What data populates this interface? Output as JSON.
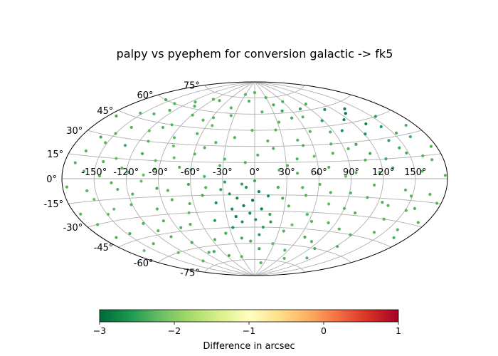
{
  "chart_data": {
    "type": "scatter",
    "projection": "aitoff",
    "title": "palpy vs pyephem for conversion galactic -> fk5",
    "grid": true,
    "x_ticks": [
      -150,
      -120,
      -90,
      -60,
      -30,
      0,
      30,
      60,
      90,
      120,
      150
    ],
    "x_tick_labels": [
      "-150°",
      "-120°",
      "-90°",
      "-60°",
      "-30°",
      "0°",
      "30°",
      "60°",
      "90°",
      "120°",
      "150°"
    ],
    "y_ticks": [
      -75,
      -60,
      -45,
      -30,
      -15,
      0,
      15,
      30,
      45,
      60,
      75
    ],
    "y_tick_labels": [
      "-75°",
      "-60°",
      "-45°",
      "-30°",
      "-15°",
      "0°",
      "15°",
      "30°",
      "45°",
      "60°",
      "75°"
    ],
    "xlim": [
      -180,
      180
    ],
    "ylim": [
      -90,
      90
    ],
    "colorbar": {
      "label": "Difference in arcsec",
      "colormap": "RdYlGn_r",
      "orientation": "horizontal",
      "range": [
        -3,
        1
      ],
      "ticks": [
        -3,
        -2,
        -1,
        0,
        1
      ],
      "tick_labels": [
        "−3",
        "−2",
        "−1",
        "0",
        "1"
      ],
      "stops": [
        "#006837",
        "#1a9850",
        "#66bd63",
        "#a6d96a",
        "#d9ef8b",
        "#ffffbf",
        "#fee08b",
        "#fdae61",
        "#f46d43",
        "#d73027",
        "#a50026"
      ]
    },
    "points": [
      [
        -176,
        -5,
        -2.3
      ],
      [
        -172,
        42,
        -2.4
      ],
      [
        -168,
        -30,
        -2.3
      ],
      [
        -165,
        18,
        -2.3
      ],
      [
        -162,
        -52,
        -2.2
      ],
      [
        -160,
        5,
        -2.3
      ],
      [
        -157,
        60,
        -2.4
      ],
      [
        -154,
        -14,
        -2.2
      ],
      [
        -150,
        32,
        -2.3
      ],
      [
        -147,
        -40,
        -2.4
      ],
      [
        -144,
        12,
        -2.3
      ],
      [
        -140,
        -22,
        -2.2
      ],
      [
        -137,
        50,
        -2.3
      ],
      [
        -134,
        -3,
        -2.3
      ],
      [
        -131,
        25,
        -2.4
      ],
      [
        -128,
        -60,
        -2.2
      ],
      [
        -125,
        8,
        -2.3
      ],
      [
        -122,
        -35,
        -2.3
      ],
      [
        -119,
        38,
        -2.2
      ],
      [
        -116,
        -12,
        -2.3
      ],
      [
        -113,
        65,
        -2.3
      ],
      [
        -110,
        20,
        -2.4
      ],
      [
        -107,
        -48,
        -2.3
      ],
      [
        -104,
        3,
        -2.2
      ],
      [
        -101,
        45,
        -2.3
      ],
      [
        -98,
        -25,
        -2.3
      ],
      [
        -95,
        15,
        -2.2
      ],
      [
        -92,
        -8,
        -2.4
      ],
      [
        -89,
        55,
        -2.3
      ],
      [
        -86,
        -42,
        -2.3
      ],
      [
        -83,
        28,
        -2.2
      ],
      [
        -80,
        -18,
        -2.3
      ],
      [
        -77,
        70,
        -2.3
      ],
      [
        -74,
        -65,
        -2.4
      ],
      [
        -71,
        10,
        -2.3
      ],
      [
        -68,
        -30,
        -2.2
      ],
      [
        -65,
        40,
        -2.3
      ],
      [
        -62,
        -5,
        -2.4
      ],
      [
        -59,
        22,
        -2.3
      ],
      [
        -56,
        -55,
        -2.3
      ],
      [
        -53,
        48,
        -2.2
      ],
      [
        -50,
        -15,
        -2.4
      ],
      [
        -47,
        2,
        -2.3
      ],
      [
        -44,
        -38,
        -2.5
      ],
      [
        -41,
        33,
        -2.3
      ],
      [
        -38,
        -22,
        -2.6
      ],
      [
        -35,
        58,
        -2.3
      ],
      [
        -32,
        -10,
        -2.5
      ],
      [
        -29,
        18,
        -2.3
      ],
      [
        -26,
        -45,
        -2.6
      ],
      [
        -23,
        -28,
        -2.7
      ],
      [
        -20,
        -35,
        -2.8
      ],
      [
        -17,
        -18,
        -2.7
      ],
      [
        -14,
        -40,
        -2.6
      ],
      [
        -11,
        -25,
        -2.8
      ],
      [
        -8,
        -8,
        -2.6
      ],
      [
        -5,
        -32,
        -2.7
      ],
      [
        -2,
        -20,
        -2.9
      ],
      [
        1,
        -38,
        -2.6
      ],
      [
        4,
        -12,
        -2.7
      ],
      [
        7,
        -28,
        -2.8
      ],
      [
        10,
        -45,
        -2.5
      ],
      [
        13,
        -16,
        -2.6
      ],
      [
        16,
        -33,
        -2.5
      ],
      [
        -24,
        -14,
        -2.6
      ],
      [
        -12,
        -5,
        -2.5
      ],
      [
        0,
        -2,
        -2.4
      ],
      [
        6,
        -52,
        -2.5
      ],
      [
        -6,
        -58,
        -2.4
      ],
      [
        12,
        62,
        -2.3
      ],
      [
        19,
        28,
        -2.3
      ],
      [
        22,
        -8,
        -2.4
      ],
      [
        25,
        45,
        -2.3
      ],
      [
        28,
        -60,
        -2.2
      ],
      [
        31,
        12,
        -2.3
      ],
      [
        34,
        -25,
        -2.3
      ],
      [
        37,
        68,
        -2.4
      ],
      [
        40,
        5,
        -2.3
      ],
      [
        43,
        -42,
        -2.2
      ],
      [
        46,
        35,
        -2.3
      ],
      [
        49,
        -15,
        -2.3
      ],
      [
        52,
        55,
        -2.4
      ],
      [
        55,
        -32,
        -2.3
      ],
      [
        58,
        20,
        -2.2
      ],
      [
        61,
        -5,
        -2.3
      ],
      [
        64,
        42,
        -2.3
      ],
      [
        67,
        -52,
        -2.4
      ],
      [
        70,
        10,
        -2.3
      ],
      [
        73,
        -22,
        -2.2
      ],
      [
        76,
        62,
        -2.5
      ],
      [
        79,
        30,
        -2.3
      ],
      [
        82,
        -38,
        -2.3
      ],
      [
        85,
        2,
        -2.2
      ],
      [
        88,
        50,
        -2.5
      ],
      [
        91,
        -12,
        -2.3
      ],
      [
        94,
        25,
        -2.3
      ],
      [
        97,
        -60,
        -2.4
      ],
      [
        100,
        40,
        -2.6
      ],
      [
        103,
        -28,
        -2.3
      ],
      [
        106,
        15,
        -2.3
      ],
      [
        109,
        58,
        -2.7
      ],
      [
        112,
        -5,
        -2.3
      ],
      [
        115,
        48,
        -2.8
      ],
      [
        118,
        -45,
        -2.3
      ],
      [
        121,
        35,
        -2.6
      ],
      [
        124,
        -18,
        -2.3
      ],
      [
        127,
        52,
        -2.9
      ],
      [
        130,
        8,
        -2.4
      ],
      [
        133,
        42,
        -2.7
      ],
      [
        136,
        -30,
        -2.3
      ],
      [
        139,
        28,
        -2.5
      ],
      [
        142,
        -8,
        -2.3
      ],
      [
        145,
        38,
        -2.6
      ],
      [
        148,
        18,
        -2.4
      ],
      [
        151,
        -22,
        -2.3
      ],
      [
        154,
        45,
        -2.5
      ],
      [
        157,
        5,
        -2.3
      ],
      [
        160,
        -35,
        -2.3
      ],
      [
        163,
        28,
        -2.4
      ],
      [
        166,
        -10,
        -2.3
      ],
      [
        169,
        12,
        -2.3
      ],
      [
        172,
        -28,
        -2.3
      ],
      [
        175,
        20,
        -2.3
      ],
      [
        178,
        2,
        -2.3
      ],
      [
        -175,
        -22,
        -2.3
      ],
      [
        -170,
        10,
        -2.3
      ],
      [
        -166,
        -40,
        -2.3
      ],
      [
        -161,
        28,
        -2.4
      ],
      [
        -158,
        -8,
        -2.3
      ],
      [
        -153,
        48,
        -2.3
      ],
      [
        -149,
        -25,
        -2.2
      ],
      [
        -145,
        2,
        -2.3
      ],
      [
        -141,
        38,
        -2.3
      ],
      [
        -138,
        -50,
        -2.3
      ],
      [
        -133,
        15,
        -2.2
      ],
      [
        -129,
        -8,
        -2.3
      ],
      [
        -126,
        55,
        -2.3
      ],
      [
        -121,
        -20,
        -2.3
      ],
      [
        -118,
        5,
        -2.4
      ],
      [
        -114,
        -42,
        -2.3
      ],
      [
        -111,
        30,
        -2.3
      ],
      [
        -106,
        -2,
        -2.2
      ],
      [
        -103,
        62,
        -2.3
      ],
      [
        -99,
        -35,
        -2.3
      ],
      [
        -94,
        8,
        -2.3
      ],
      [
        -90,
        -55,
        -2.4
      ],
      [
        -87,
        35,
        -2.3
      ],
      [
        -82,
        -10,
        -2.3
      ],
      [
        -78,
        18,
        -2.2
      ],
      [
        -73,
        -40,
        -2.3
      ],
      [
        -69,
        52,
        -2.3
      ],
      [
        -64,
        -22,
        -2.3
      ],
      [
        -60,
        8,
        -2.3
      ],
      [
        -55,
        -70,
        -2.4
      ],
      [
        -51,
        28,
        -2.3
      ],
      [
        -46,
        -8,
        -2.3
      ],
      [
        -42,
        65,
        -2.3
      ],
      [
        -37,
        -50,
        -2.4
      ],
      [
        -33,
        12,
        -2.3
      ],
      [
        -28,
        -3,
        -2.5
      ],
      [
        -22,
        38,
        -2.3
      ],
      [
        -18,
        -55,
        -2.4
      ],
      [
        -13,
        72,
        -2.3
      ],
      [
        -9,
        15,
        -2.3
      ],
      [
        -3,
        45,
        -2.3
      ],
      [
        3,
        22,
        -2.3
      ],
      [
        8,
        -65,
        -2.4
      ],
      [
        14,
        35,
        -2.3
      ],
      [
        18,
        -40,
        -2.5
      ],
      [
        23,
        8,
        -2.3
      ],
      [
        27,
        -18,
        -2.4
      ],
      [
        32,
        52,
        -2.3
      ],
      [
        36,
        -48,
        -2.3
      ],
      [
        41,
        18,
        -2.3
      ],
      [
        45,
        -8,
        -2.3
      ],
      [
        50,
        30,
        -2.3
      ],
      [
        54,
        -65,
        -2.3
      ],
      [
        59,
        5,
        -2.3
      ],
      [
        63,
        -38,
        -2.3
      ],
      [
        68,
        55,
        -2.3
      ],
      [
        72,
        -12,
        -2.3
      ],
      [
        77,
        22,
        -2.3
      ],
      [
        81,
        -55,
        -2.3
      ],
      [
        86,
        40,
        -2.3
      ],
      [
        90,
        -25,
        -2.3
      ],
      [
        95,
        5,
        -2.3
      ],
      [
        99,
        -42,
        -2.3
      ],
      [
        104,
        28,
        -2.4
      ],
      [
        108,
        -15,
        -2.3
      ],
      [
        113,
        20,
        -2.4
      ],
      [
        117,
        5,
        -2.3
      ],
      [
        122,
        -55,
        -2.3
      ],
      [
        126,
        15,
        -2.4
      ],
      [
        131,
        -20,
        -2.3
      ],
      [
        135,
        55,
        -2.8
      ],
      [
        140,
        -40,
        -2.3
      ],
      [
        144,
        22,
        -2.4
      ],
      [
        149,
        -12,
        -2.3
      ],
      [
        153,
        32,
        -2.4
      ],
      [
        158,
        -20,
        -2.3
      ],
      [
        162,
        15,
        -2.3
      ],
      [
        167,
        -40,
        -2.3
      ],
      [
        171,
        35,
        -2.3
      ],
      [
        176,
        -15,
        -2.3
      ],
      [
        -152,
        25,
        -2.3
      ],
      [
        -136,
        60,
        -2.3
      ],
      [
        -108,
        42,
        -2.3
      ],
      [
        -84,
        -65,
        -2.3
      ],
      [
        -58,
        55,
        -2.3
      ],
      [
        -30,
        78,
        -2.3
      ],
      [
        0,
        80,
        -2.3
      ],
      [
        30,
        75,
        -2.3
      ],
      [
        60,
        70,
        -2.3
      ],
      [
        95,
        65,
        -2.3
      ],
      [
        -120,
        -70,
        -2.3
      ],
      [
        -30,
        -72,
        -2.3
      ],
      [
        20,
        -78,
        -2.3
      ],
      [
        70,
        -72,
        -2.3
      ],
      [
        110,
        -68,
        -2.3
      ],
      [
        45,
        62,
        -2.5
      ],
      [
        -92,
        70,
        -2.3
      ]
    ]
  }
}
